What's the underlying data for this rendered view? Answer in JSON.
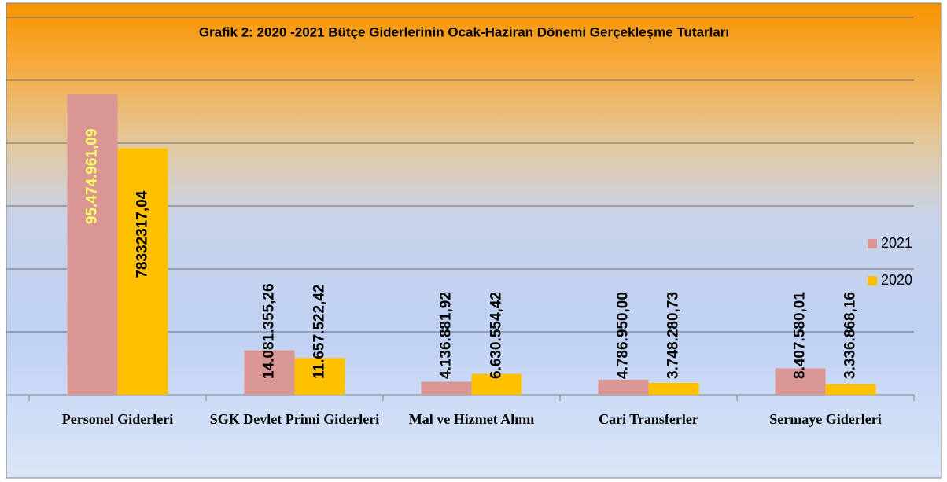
{
  "chart_data": {
    "type": "bar",
    "title": "Grafik 2: 2020 -2021 Bütçe Giderlerinin Ocak-Haziran Dönemi Gerçekleşme Tutarları",
    "categories": [
      "Personel Giderleri",
      "SGK Devlet Primi Giderleri",
      "Mal ve Hizmet Alımı",
      "Cari Transferler",
      "Sermaye Giderleri"
    ],
    "series": [
      {
        "name": "2021",
        "color": "#d99694",
        "values": [
          95474961.09,
          14081355.26,
          4136881.92,
          4786950.0,
          8407580.01
        ],
        "value_labels": [
          "95.474.961,09",
          "14.081.355,26",
          "4.136.881,92",
          "4.786.950,00",
          "8.407.580,01"
        ]
      },
      {
        "name": "2020",
        "color": "#ffc000",
        "values": [
          78332317.04,
          11657522.42,
          6630554.42,
          3748280.73,
          3336868.16
        ],
        "value_labels": [
          "78332317,04",
          "11.657.522,42",
          "6.630.554,42",
          "3.748.280,73",
          "3.336.868,16"
        ]
      }
    ],
    "ylim": [
      0,
      120000000
    ],
    "yticks": [
      0,
      20000000,
      40000000,
      60000000,
      80000000,
      100000000,
      120000000
    ],
    "grid": true,
    "legend": "right"
  }
}
